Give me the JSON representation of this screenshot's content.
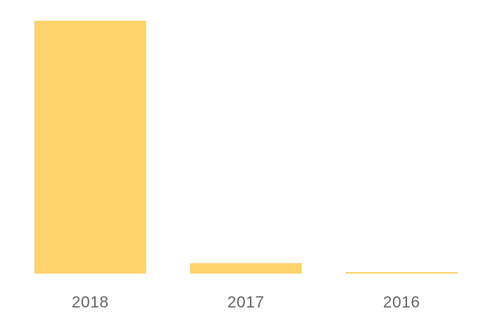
{
  "chart_data": {
    "type": "bar",
    "categories": [
      "2018",
      "2017",
      "2016"
    ],
    "values": [
      100,
      4.1,
      0.6
    ],
    "color": "#fdd36b",
    "ylim": [
      0,
      100
    ]
  }
}
